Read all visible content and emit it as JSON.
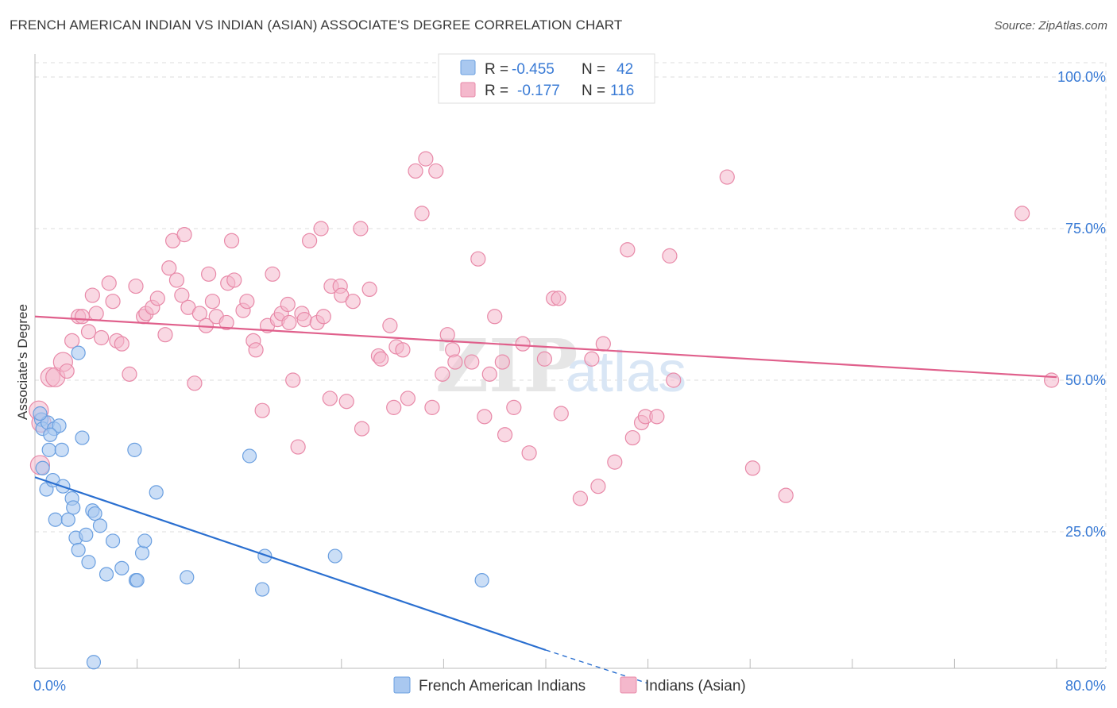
{
  "title": "FRENCH AMERICAN INDIAN VS INDIAN (ASIAN) ASSOCIATE'S DEGREE CORRELATION CHART",
  "source": "Source: ZipAtlas.com",
  "colors": {
    "blue_fill": "#a9c8f0",
    "blue_stroke": "#6a9fe0",
    "blue_line": "#2a6fd0",
    "pink_fill": "#f4b8cc",
    "pink_stroke": "#e889a8",
    "pink_line": "#e0608c",
    "axis_label": "#3a7bd5",
    "grid": "#dddddd"
  },
  "legend": {
    "rows": [
      {
        "r_label": "R = ",
        "r_value": "-0.455",
        "n_label": "N = ",
        "n_value": "42"
      },
      {
        "r_label": "R = ",
        "r_value": "-0.177",
        "n_label": "N = ",
        "n_value": "116"
      }
    ]
  },
  "bottom_legend": [
    "French American Indians",
    "Indians (Asian)"
  ],
  "watermark": {
    "zip": "ZIP",
    "atlas": "atlas"
  },
  "chart_data": {
    "type": "scatter",
    "title": "FRENCH AMERICAN INDIAN VS INDIAN (ASIAN) ASSOCIATE'S DEGREE CORRELATION CHART",
    "xlabel": "",
    "ylabel": "Associate's Degree",
    "xlim": [
      0,
      80
    ],
    "ylim": [
      0,
      100
    ],
    "x_tick_labels": [
      "0.0%",
      "80.0%"
    ],
    "y_tick_labels": [
      "100.0%",
      "75.0%",
      "50.0%",
      "25.0%"
    ],
    "y_ticks": [
      100,
      75,
      50,
      25
    ],
    "series": [
      {
        "name": "French American Indians",
        "R": -0.455,
        "N": 42,
        "trend": {
          "x0": 0,
          "y0": 34.0,
          "x1": 40,
          "y1": 5.5,
          "dash_to_x": 48,
          "dash_to_y": 0
        },
        "points": [
          [
            0.5,
            43.5
          ],
          [
            0.6,
            42.0
          ],
          [
            0.6,
            35.5
          ],
          [
            0.9,
            32.0
          ],
          [
            1.0,
            43.0
          ],
          [
            1.1,
            38.5
          ],
          [
            1.4,
            33.5
          ],
          [
            1.5,
            42.0
          ],
          [
            1.6,
            27.0
          ],
          [
            1.9,
            42.5
          ],
          [
            2.1,
            38.5
          ],
          [
            2.2,
            32.5
          ],
          [
            2.6,
            27.0
          ],
          [
            2.9,
            30.5
          ],
          [
            3.0,
            29.0
          ],
          [
            3.2,
            24.0
          ],
          [
            3.4,
            22.0
          ],
          [
            3.7,
            40.5
          ],
          [
            4.0,
            24.5
          ],
          [
            4.2,
            20.0
          ],
          [
            4.5,
            28.5
          ],
          [
            4.7,
            28.0
          ],
          [
            5.1,
            26.0
          ],
          [
            5.6,
            18.0
          ],
          [
            6.1,
            23.5
          ],
          [
            6.8,
            19.0
          ],
          [
            7.8,
            38.5
          ],
          [
            7.9,
            17.0
          ],
          [
            8.0,
            17.0
          ],
          [
            8.4,
            21.5
          ],
          [
            8.6,
            23.5
          ],
          [
            9.5,
            31.5
          ],
          [
            11.9,
            17.5
          ],
          [
            16.8,
            37.5
          ],
          [
            17.8,
            15.5
          ],
          [
            18.0,
            21.0
          ],
          [
            23.5,
            21.0
          ],
          [
            35.0,
            17.0
          ],
          [
            4.6,
            3.5
          ],
          [
            3.4,
            54.5
          ],
          [
            1.2,
            41.0
          ],
          [
            0.4,
            44.5
          ]
        ]
      },
      {
        "name": "Indians (Asian)",
        "R": -0.177,
        "N": 116,
        "trend": {
          "x0": 0,
          "y0": 60.5,
          "x1": 80,
          "y1": 50.5
        },
        "points": [
          [
            0.3,
            45.0
          ],
          [
            0.4,
            36.0
          ],
          [
            0.5,
            43.0
          ],
          [
            1.2,
            50.5
          ],
          [
            1.6,
            50.5
          ],
          [
            2.2,
            53.0
          ],
          [
            2.5,
            51.5
          ],
          [
            2.9,
            56.5
          ],
          [
            3.4,
            60.5
          ],
          [
            3.7,
            60.5
          ],
          [
            4.2,
            58.0
          ],
          [
            4.5,
            64.0
          ],
          [
            4.8,
            61.0
          ],
          [
            5.2,
            57.0
          ],
          [
            5.8,
            66.0
          ],
          [
            6.1,
            63.0
          ],
          [
            6.4,
            56.5
          ],
          [
            6.8,
            56.0
          ],
          [
            7.4,
            51.0
          ],
          [
            7.9,
            65.5
          ],
          [
            8.5,
            60.5
          ],
          [
            8.7,
            61.0
          ],
          [
            9.2,
            62.0
          ],
          [
            9.6,
            63.5
          ],
          [
            10.2,
            57.5
          ],
          [
            10.5,
            68.5
          ],
          [
            10.8,
            73.0
          ],
          [
            11.1,
            66.5
          ],
          [
            11.5,
            64.0
          ],
          [
            11.7,
            74.0
          ],
          [
            12.0,
            62.0
          ],
          [
            12.5,
            49.5
          ],
          [
            12.9,
            61.0
          ],
          [
            13.4,
            59.0
          ],
          [
            13.6,
            67.5
          ],
          [
            13.9,
            63.0
          ],
          [
            14.2,
            60.5
          ],
          [
            15.0,
            59.5
          ],
          [
            15.1,
            66.0
          ],
          [
            15.4,
            73.0
          ],
          [
            15.6,
            66.5
          ],
          [
            16.3,
            61.5
          ],
          [
            16.6,
            63.0
          ],
          [
            17.1,
            56.5
          ],
          [
            17.3,
            55.0
          ],
          [
            17.8,
            45.0
          ],
          [
            18.2,
            59.0
          ],
          [
            18.6,
            67.5
          ],
          [
            19.0,
            60.0
          ],
          [
            19.3,
            61.0
          ],
          [
            19.8,
            62.5
          ],
          [
            19.9,
            59.5
          ],
          [
            20.2,
            50.0
          ],
          [
            20.6,
            39.0
          ],
          [
            20.9,
            61.0
          ],
          [
            21.1,
            60.0
          ],
          [
            21.5,
            73.0
          ],
          [
            22.1,
            59.5
          ],
          [
            22.4,
            75.0
          ],
          [
            22.6,
            60.5
          ],
          [
            23.1,
            47.0
          ],
          [
            23.2,
            65.5
          ],
          [
            23.9,
            65.5
          ],
          [
            24.0,
            64.0
          ],
          [
            24.4,
            46.5
          ],
          [
            24.9,
            63.0
          ],
          [
            25.5,
            75.0
          ],
          [
            25.6,
            42.0
          ],
          [
            26.2,
            65.0
          ],
          [
            26.9,
            54.0
          ],
          [
            27.1,
            53.5
          ],
          [
            27.8,
            59.0
          ],
          [
            28.1,
            45.5
          ],
          [
            28.3,
            55.5
          ],
          [
            28.8,
            55.0
          ],
          [
            29.2,
            47.0
          ],
          [
            29.8,
            84.5
          ],
          [
            30.3,
            77.5
          ],
          [
            30.6,
            86.5
          ],
          [
            31.1,
            45.5
          ],
          [
            31.4,
            84.5
          ],
          [
            31.9,
            51.0
          ],
          [
            32.3,
            57.5
          ],
          [
            32.7,
            55.0
          ],
          [
            32.9,
            53.0
          ],
          [
            34.2,
            53.0
          ],
          [
            34.7,
            70.0
          ],
          [
            35.2,
            44.0
          ],
          [
            35.6,
            51.0
          ],
          [
            36.0,
            60.5
          ],
          [
            36.6,
            53.0
          ],
          [
            36.8,
            41.0
          ],
          [
            37.5,
            45.5
          ],
          [
            38.2,
            56.0
          ],
          [
            38.7,
            38.0
          ],
          [
            39.9,
            53.5
          ],
          [
            40.6,
            63.5
          ],
          [
            41.0,
            63.5
          ],
          [
            41.2,
            44.5
          ],
          [
            42.7,
            30.5
          ],
          [
            43.6,
            53.5
          ],
          [
            44.1,
            32.5
          ],
          [
            44.5,
            56.0
          ],
          [
            45.4,
            36.5
          ],
          [
            46.4,
            71.5
          ],
          [
            46.8,
            40.5
          ],
          [
            47.5,
            43.0
          ],
          [
            47.8,
            44.0
          ],
          [
            48.7,
            44.0
          ],
          [
            49.7,
            70.5
          ],
          [
            50.0,
            50.0
          ],
          [
            54.2,
            83.5
          ],
          [
            56.2,
            35.5
          ],
          [
            58.8,
            31.0
          ],
          [
            77.3,
            77.5
          ],
          [
            79.6,
            50.0
          ]
        ]
      }
    ]
  }
}
